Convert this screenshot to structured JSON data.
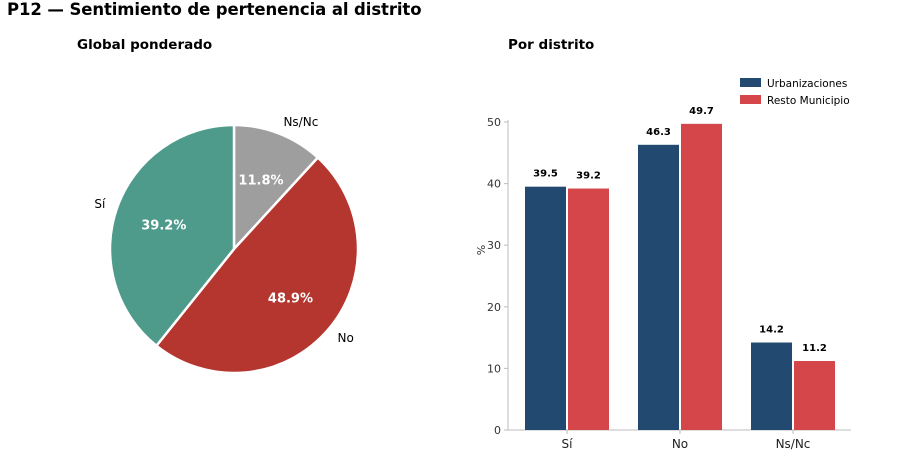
{
  "title": "P12 — Sentimiento de pertenencia al distrito",
  "colors": {
    "si": "#4e9a8b",
    "no": "#b5362f",
    "nsnc": "#9e9e9e",
    "urbanizaciones": "#224a70",
    "resto": "#d4464a"
  },
  "chart_data": [
    {
      "type": "pie",
      "title": "Global ponderado",
      "slices": [
        {
          "label": "Ns/Nc",
          "value": 11.8,
          "pct_label": "11.8%",
          "color": "#9e9e9e"
        },
        {
          "label": "No",
          "value": 48.9,
          "pct_label": "48.9%",
          "color": "#b5362f"
        },
        {
          "label": "Sí",
          "value": 39.2,
          "pct_label": "39.2%",
          "color": "#4e9a8b"
        }
      ]
    },
    {
      "type": "bar",
      "title": "Por distrito",
      "categories": [
        "Sí",
        "No",
        "Ns/Nc"
      ],
      "series": [
        {
          "name": "Urbanizaciones",
          "values": [
            39.5,
            46.3,
            14.2
          ],
          "labels": [
            "39.5",
            "46.3",
            "14.2"
          ],
          "color": "#224a70"
        },
        {
          "name": "Resto Municipio",
          "values": [
            39.2,
            49.7,
            11.2
          ],
          "labels": [
            "39.2",
            "49.7",
            "11.2"
          ],
          "color": "#d4464a"
        }
      ],
      "ylabel": "%",
      "ylim": [
        0,
        50
      ],
      "yticks": [
        "0",
        "10",
        "20",
        "30",
        "40",
        "50"
      ],
      "legend": "top-right",
      "grid": false
    }
  ]
}
